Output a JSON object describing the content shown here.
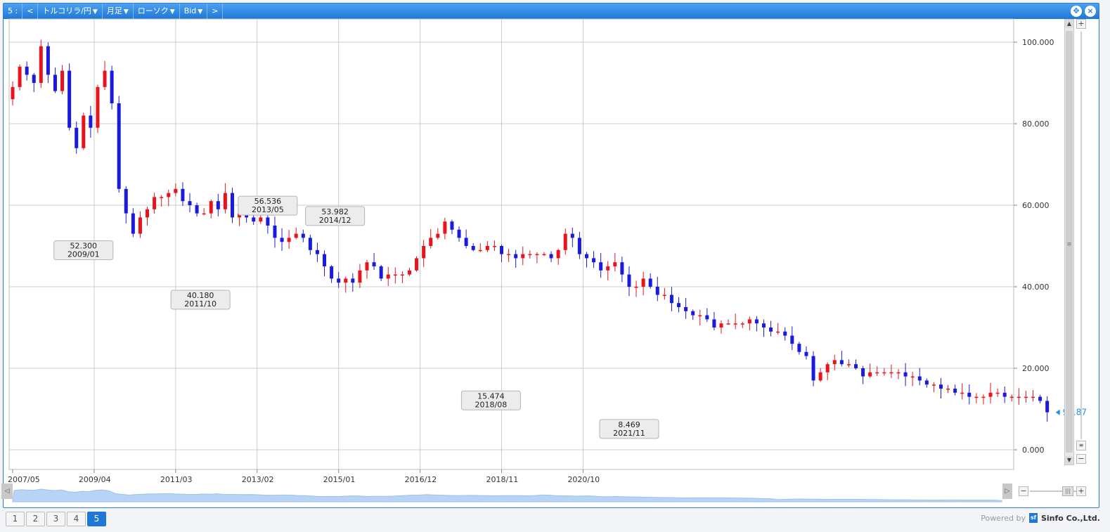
{
  "toolbar": {
    "index": "5 :",
    "prev": "<",
    "symbol": "トルコリラ/円",
    "period": "月足",
    "style": "ローソク",
    "price_type": "Bid",
    "next": ">",
    "dropdown_arrow": "▼"
  },
  "tabs": [
    "1",
    "2",
    "3",
    "4",
    "5"
  ],
  "active_tab": "5",
  "powered": {
    "text": "Powered by",
    "brand": "Sinfo Co.,Ltd.",
    "logo": "sf"
  },
  "colors": {
    "up": "#e8141c",
    "down": "#1a1adf",
    "accent": "#1f78d6",
    "grid": "#cccccc",
    "last_price": "#1f8ee6"
  },
  "chart_data": {
    "type": "candlestick",
    "ylim": [
      -5,
      105
    ],
    "yticks": [
      "100.000",
      "80.000",
      "60.000",
      "40.000",
      "20.000",
      "0.000"
    ],
    "ytick_values": [
      100,
      80,
      60,
      40,
      20,
      0
    ],
    "xticks": [
      "2007/05",
      "2009/04",
      "2011/03",
      "2013/02",
      "2015/01",
      "2016/12",
      "2018/11",
      "2020/10"
    ],
    "x_start": "2007/05",
    "x_end": "2021/11",
    "last_price": "9.187",
    "annotations": [
      {
        "value": "52.300",
        "date": "2009/01",
        "kind": "low"
      },
      {
        "value": "40.180",
        "date": "2011/10",
        "kind": "low"
      },
      {
        "value": "56.536",
        "date": "2013/05",
        "kind": "high"
      },
      {
        "value": "53.982",
        "date": "2014/12",
        "kind": "high"
      },
      {
        "value": "15.474",
        "date": "2018/08",
        "kind": "low"
      },
      {
        "value": "8.469",
        "date": "2021/11",
        "kind": "low"
      }
    ],
    "close_series": [
      89,
      94,
      92,
      90,
      99,
      92,
      88,
      93,
      79,
      74,
      82,
      79,
      89,
      93,
      85,
      64,
      58,
      53,
      57,
      59,
      62,
      62,
      63,
      64,
      61,
      60,
      58,
      58,
      61,
      59,
      63,
      57,
      58,
      57,
      56,
      57,
      55,
      52,
      51,
      52,
      53,
      52,
      49,
      48,
      45,
      42,
      41,
      42,
      41,
      44,
      46,
      45,
      42,
      43,
      43,
      43,
      44,
      47,
      50,
      52,
      53,
      56,
      54,
      52,
      50,
      49,
      49,
      50,
      50,
      48,
      48,
      47,
      48,
      48,
      48,
      48,
      47,
      49,
      53,
      52,
      48,
      47,
      46,
      44,
      45,
      46,
      43,
      40,
      40,
      42,
      40,
      38,
      38,
      36,
      35,
      34,
      33,
      33,
      32,
      30,
      31,
      31,
      31,
      31,
      32,
      31,
      30,
      29,
      29,
      28,
      26,
      24,
      23,
      17,
      19,
      21,
      22,
      21,
      21,
      20,
      18,
      19,
      19,
      19,
      19,
      19,
      18,
      18,
      17,
      16,
      16,
      15,
      15,
      14,
      14,
      13,
      13,
      13,
      14,
      14,
      13,
      13,
      13,
      13,
      13,
      12,
      9.2
    ]
  }
}
